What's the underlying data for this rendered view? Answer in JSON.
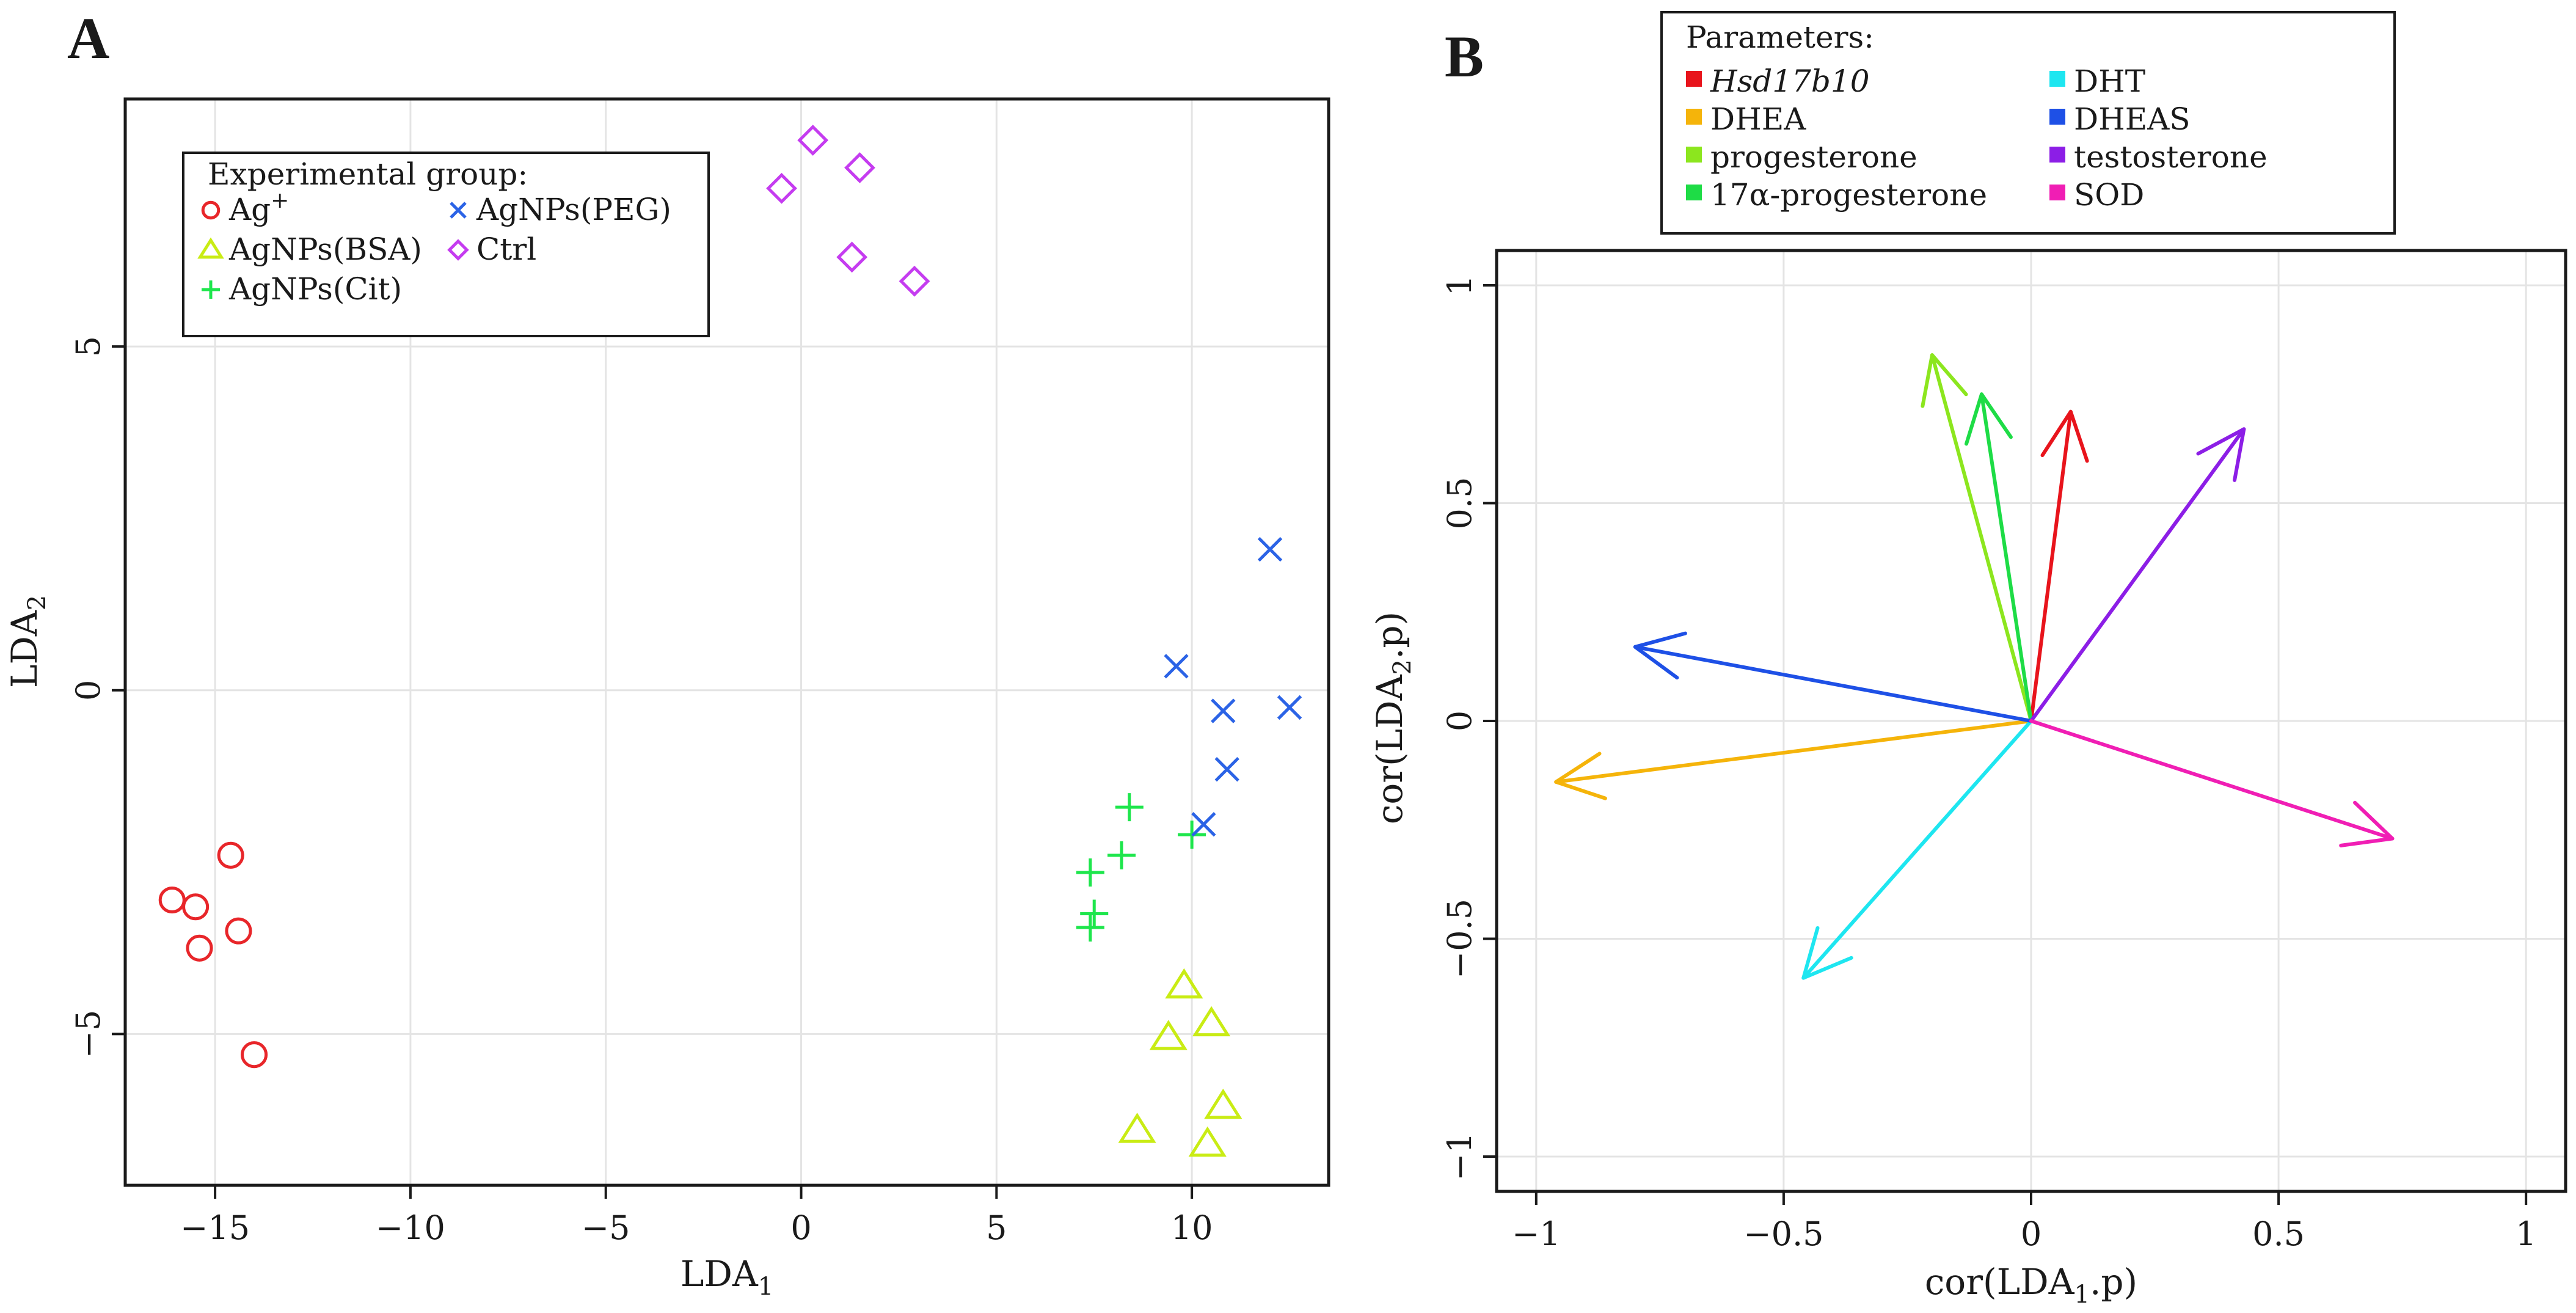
{
  "chart_data": [
    {
      "panel": "A",
      "type": "scatter",
      "xlabel": "LDA",
      "xlabel_sub": "1",
      "ylabel": "LDA",
      "ylabel_sub": "2",
      "xlim": [
        -17.3,
        13.5
      ],
      "ylim": [
        -7.2,
        8.6
      ],
      "xticks": [
        -15,
        -10,
        -5,
        0,
        5,
        10
      ],
      "yticks": [
        -5,
        0,
        5
      ],
      "xtick_labels": [
        "−15",
        "−10",
        "−5",
        "0",
        "5",
        "10"
      ],
      "ytick_labels": [
        "−5",
        "0",
        "5"
      ],
      "grid": true,
      "legend_title": "Experimental group:",
      "legend_position": "top-left",
      "series": [
        {
          "name": "Ag",
          "name_sup": "+",
          "marker": "circle",
          "color": "#e8262a",
          "points": [
            [
              -16.1,
              -3.05
            ],
            [
              -15.5,
              -3.15
            ],
            [
              -15.4,
              -3.75
            ],
            [
              -14.6,
              -2.4
            ],
            [
              -14.4,
              -3.5
            ],
            [
              -14.0,
              -5.3
            ]
          ]
        },
        {
          "name": "AgNPs(BSA)",
          "marker": "triangle",
          "color": "#c9ec14",
          "points": [
            [
              9.8,
              -4.3
            ],
            [
              10.5,
              -4.85
            ],
            [
              9.4,
              -5.05
            ],
            [
              10.8,
              -6.05
            ],
            [
              8.6,
              -6.4
            ],
            [
              10.4,
              -6.6
            ]
          ]
        },
        {
          "name": "AgNPs(Cit)",
          "marker": "plus",
          "color": "#1ee64c",
          "points": [
            [
              8.4,
              -1.7
            ],
            [
              8.2,
              -2.4
            ],
            [
              10.0,
              -2.1
            ],
            [
              7.4,
              -2.65
            ],
            [
              7.5,
              -3.25
            ],
            [
              7.4,
              -3.45
            ]
          ]
        },
        {
          "name": "AgNPs(PEG)",
          "marker": "cross",
          "color": "#2b63e6",
          "points": [
            [
              12.0,
              2.05
            ],
            [
              9.6,
              0.35
            ],
            [
              10.8,
              -0.3
            ],
            [
              12.5,
              -0.25
            ],
            [
              10.9,
              -1.15
            ],
            [
              10.3,
              -1.95
            ]
          ]
        },
        {
          "name": "Ctrl",
          "marker": "diamond",
          "color": "#c53cf0",
          "points": [
            [
              0.3,
              8.0
            ],
            [
              1.5,
              7.6
            ],
            [
              -0.5,
              7.3
            ],
            [
              1.3,
              6.3
            ],
            [
              2.9,
              5.95
            ]
          ]
        }
      ]
    },
    {
      "panel": "B",
      "type": "vector",
      "xlabel": "cor(LDA",
      "xlabel_sub": "1",
      "xlabel_end": ".p)",
      "ylabel": "cor(LDA",
      "ylabel_sub": "2",
      "ylabel_end": ".p)",
      "xlim": [
        -1.08,
        1.08
      ],
      "ylim": [
        -1.08,
        1.08
      ],
      "xticks": [
        -1,
        -0.5,
        0,
        0.5,
        1
      ],
      "yticks": [
        -1,
        -0.5,
        0,
        0.5,
        1
      ],
      "xtick_labels": [
        "−1",
        "−0.5",
        "0",
        "0.5",
        "1"
      ],
      "ytick_labels": [
        "−1",
        "−0.5",
        "0",
        "0.5",
        "1"
      ],
      "grid": true,
      "legend_title": "Parameters:",
      "legend_position": "top-center",
      "vectors": [
        {
          "name": "Hsd17b10",
          "italic": true,
          "color": "#e8141c",
          "x": 0.08,
          "y": 0.71
        },
        {
          "name": "DHEA",
          "color": "#f5b40a",
          "x": -0.96,
          "y": -0.14
        },
        {
          "name": "progesterone",
          "color": "#8ce61e",
          "x": -0.2,
          "y": 0.84
        },
        {
          "name": "17α-progesterone",
          "color": "#1edc46",
          "x": -0.1,
          "y": 0.75
        },
        {
          "name": "DHT",
          "color": "#1ee6f0",
          "x": -0.46,
          "y": -0.59
        },
        {
          "name": "DHEAS",
          "color": "#1e50e6",
          "x": -0.8,
          "y": 0.17
        },
        {
          "name": "testosterone",
          "color": "#8c1ee6",
          "x": 0.43,
          "y": 0.67
        },
        {
          "name": "SOD",
          "color": "#f01eb4",
          "x": 0.73,
          "y": -0.27
        }
      ]
    }
  ]
}
